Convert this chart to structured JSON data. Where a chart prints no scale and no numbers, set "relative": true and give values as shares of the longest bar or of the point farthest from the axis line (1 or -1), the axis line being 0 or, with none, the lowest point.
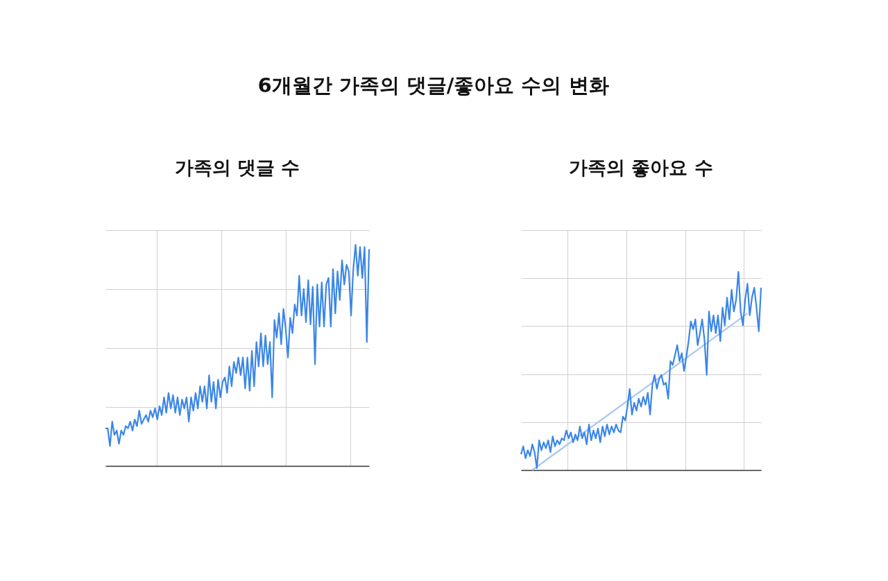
{
  "chart_data": [
    {
      "type": "line",
      "title": "가족의 댓글 수",
      "annotations": [
        "6개월간 가족의 댓글/좋아요 수의 변화"
      ],
      "relative": true,
      "grid": true,
      "tick_labels": false,
      "categories": [
        null,
        null,
        null,
        null,
        null,
        null,
        null,
        null,
        null,
        null,
        null,
        null,
        null,
        null,
        null,
        null,
        null,
        null,
        null,
        null,
        null,
        null,
        null,
        null,
        null,
        null,
        null,
        null,
        null,
        null,
        null,
        null,
        null,
        null,
        null,
        null,
        null,
        null,
        null,
        null,
        null,
        null,
        null,
        null,
        null,
        null,
        null,
        null,
        null,
        null,
        null,
        null,
        null,
        null,
        null,
        null,
        null,
        null,
        null,
        null,
        null,
        null,
        null,
        null,
        null,
        null,
        null,
        null,
        null,
        null,
        null,
        null,
        null,
        null,
        null,
        null,
        null,
        null,
        null,
        null,
        null,
        null,
        null,
        null,
        null,
        null,
        null,
        null,
        null,
        null,
        null,
        null,
        null,
        null,
        null,
        null,
        null,
        null,
        null,
        null,
        null,
        null,
        null,
        null,
        null,
        null,
        null,
        null,
        null,
        null,
        null,
        null,
        null,
        null,
        null,
        null,
        null,
        null
      ],
      "series": [
        {
          "color": "#3b86e8",
          "values": [
            0.17,
            0.17,
            0.09,
            0.2,
            0.14,
            0.16,
            0.1,
            0.16,
            0.14,
            0.18,
            0.17,
            0.2,
            0.16,
            0.21,
            0.18,
            0.25,
            0.19,
            0.21,
            0.23,
            0.2,
            0.25,
            0.22,
            0.26,
            0.21,
            0.27,
            0.23,
            0.31,
            0.24,
            0.33,
            0.26,
            0.32,
            0.24,
            0.31,
            0.23,
            0.3,
            0.26,
            0.31,
            0.2,
            0.31,
            0.25,
            0.33,
            0.26,
            0.36,
            0.29,
            0.36,
            0.26,
            0.41,
            0.29,
            0.38,
            0.26,
            0.39,
            0.31,
            0.38,
            0.4,
            0.33,
            0.45,
            0.36,
            0.47,
            0.42,
            0.49,
            0.41,
            0.49,
            0.35,
            0.49,
            0.34,
            0.52,
            0.36,
            0.56,
            0.45,
            0.6,
            0.45,
            0.59,
            0.46,
            0.56,
            0.31,
            0.66,
            0.58,
            0.69,
            0.55,
            0.71,
            0.62,
            0.49,
            0.67,
            0.6,
            0.73,
            0.68,
            0.86,
            0.68,
            0.8,
            0.65,
            0.84,
            0.64,
            0.81,
            0.46,
            0.82,
            0.63,
            0.83,
            0.63,
            0.82,
            0.85,
            0.63,
            0.89,
            0.69,
            0.88,
            0.75,
            0.93,
            0.82,
            0.91,
            0.88,
            0.68,
            0.89,
            1.0,
            0.86,
            0.99,
            0.85,
            0.99,
            0.56,
            0.98
          ]
        }
      ]
    },
    {
      "type": "line",
      "title": "가족의 좋아요 수",
      "relative": true,
      "grid": true,
      "tick_labels": false,
      "categories": [
        null,
        null,
        null,
        null,
        null,
        null,
        null,
        null,
        null,
        null,
        null,
        null,
        null,
        null,
        null,
        null,
        null,
        null,
        null,
        null,
        null,
        null,
        null,
        null,
        null,
        null,
        null,
        null,
        null,
        null,
        null,
        null,
        null,
        null,
        null,
        null,
        null,
        null,
        null,
        null,
        null,
        null,
        null,
        null,
        null,
        null,
        null,
        null,
        null,
        null,
        null,
        null,
        null,
        null,
        null,
        null,
        null,
        null,
        null,
        null,
        null,
        null,
        null,
        null,
        null,
        null,
        null,
        null,
        null,
        null,
        null,
        null,
        null,
        null,
        null,
        null,
        null,
        null,
        null,
        null,
        null,
        null,
        null,
        null,
        null,
        null,
        null,
        null,
        null,
        null,
        null,
        null,
        null,
        null,
        null,
        null,
        null,
        null,
        null,
        null,
        null,
        null,
        null,
        null,
        null,
        null,
        null
      ],
      "series": [
        {
          "color": "#a9c8f0",
          "values": [
            null,
            null,
            null,
            null,
            null,
            0,
            null,
            null,
            null,
            null,
            null,
            null,
            null,
            null,
            null,
            null,
            null,
            null,
            null,
            null,
            null,
            null,
            null,
            null,
            null,
            null,
            null,
            null,
            null,
            null,
            null,
            null,
            null,
            null,
            null,
            null,
            null,
            null,
            null,
            null,
            null,
            null,
            null,
            null,
            null,
            null,
            null,
            null,
            null,
            null,
            null,
            null,
            null,
            null,
            null,
            null,
            null,
            null,
            null,
            null,
            null,
            null,
            null,
            null,
            null,
            null,
            null,
            null,
            null,
            null,
            null,
            null,
            null,
            null,
            null,
            null,
            null,
            null,
            null,
            null,
            null,
            null,
            null,
            null,
            null,
            null,
            null,
            null,
            null,
            null,
            null,
            null,
            null,
            null,
            null,
            null,
            null,
            null,
            null,
            null,
            0.79,
            null,
            null,
            null,
            null,
            null,
            null
          ]
        },
        {
          "color": "#3b86e8",
          "values": [
            0.08,
            0.12,
            0.06,
            0.1,
            0.07,
            0.13,
            0.09,
            0.01,
            0.15,
            0.1,
            0.14,
            0.11,
            0.15,
            0.09,
            0.17,
            0.12,
            0.15,
            0.13,
            0.16,
            0.15,
            0.2,
            0.16,
            0.19,
            0.14,
            0.18,
            0.15,
            0.22,
            0.16,
            0.19,
            0.13,
            0.23,
            0.15,
            0.2,
            0.16,
            0.21,
            0.14,
            0.22,
            0.17,
            0.23,
            0.18,
            0.22,
            0.19,
            0.23,
            0.2,
            0.19,
            0.27,
            0.25,
            0.32,
            0.41,
            0.28,
            0.34,
            0.3,
            0.36,
            0.32,
            0.37,
            0.33,
            0.39,
            0.28,
            0.43,
            0.48,
            0.41,
            0.46,
            0.48,
            0.43,
            0.44,
            0.36,
            0.55,
            0.53,
            0.58,
            0.63,
            0.55,
            0.59,
            0.5,
            0.57,
            0.65,
            0.75,
            0.71,
            0.76,
            0.63,
            0.69,
            0.76,
            0.66,
            0.48,
            0.8,
            0.7,
            0.78,
            0.69,
            0.78,
            0.65,
            0.82,
            0.73,
            0.87,
            0.76,
            0.91,
            0.8,
            0.86,
            1.0,
            0.8,
            0.73,
            0.86,
            0.94,
            0.78,
            0.87,
            0.92,
            0.82,
            0.7,
            0.92
          ]
        }
      ]
    }
  ]
}
